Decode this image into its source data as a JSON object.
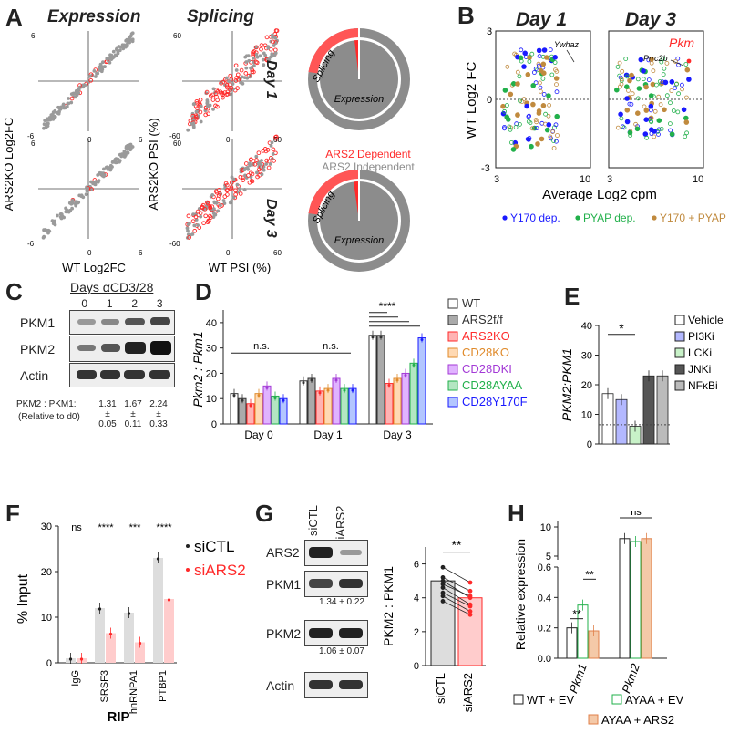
{
  "panelA": {
    "label": "A",
    "title_expr": "Expression",
    "title_splice": "Splicing",
    "ylabel_expr": "ARS2KO Log2FC",
    "ylabel_splice": "ARS2KO PSI (%)",
    "xlabel_expr": "WT Log2FC",
    "xlabel_splice": "WT PSI (%)",
    "expr_ticks": [
      "6",
      "-6",
      "0",
      "6"
    ],
    "splice_ticks": [
      "60",
      "-60",
      "0",
      "60"
    ],
    "day1": "Day 1",
    "day3": "Day 3",
    "donut_splicing": "Splicing",
    "donut_expression": "Expression",
    "legend_dep": "ARS2 Dependent",
    "legend_indep": "ARS2 Independent",
    "colors": {
      "dep": "#ff2a2a",
      "indep": "#8c8c8c"
    }
  },
  "panelB": {
    "label": "B",
    "day1": "Day 1",
    "day3": "Day 3",
    "ylabel": "WT Log2 FC",
    "xlabel": "Average  Log2 cpm",
    "yticks": [
      "3",
      "0",
      "-3"
    ],
    "xticks": [
      "3",
      "10"
    ],
    "ann_ywhaz": "Ywhaz",
    "ann_prrc2b": "Prrc2b",
    "ann_pkm": "Pkm",
    "legend": [
      "Y170 dep.",
      "PYAP dep.",
      "Y170 + PYAP"
    ],
    "colors": {
      "y170": "#1a1aff",
      "pyap": "#22b04b",
      "both": "#c08a3e"
    }
  },
  "panelC": {
    "label": "C",
    "header": "Days αCD3/28",
    "days": [
      "0",
      "1",
      "2",
      "3"
    ],
    "rows": [
      "PKM1",
      "PKM2",
      "Actin"
    ],
    "ratio_label": "PKM2 : PKM1:",
    "ratio_sub": "(Relative to d0)",
    "ratios": [
      {
        "v": "1.31",
        "pm": "±",
        "e": "0.05"
      },
      {
        "v": "1.67",
        "pm": "±",
        "e": "0.11"
      },
      {
        "v": "2.24",
        "pm": "±",
        "e": "0.33"
      }
    ]
  },
  "panelD": {
    "label": "D",
    "ylabel": "Pkm2 : Pkm1",
    "yticks": [
      "0",
      "10",
      "20",
      "30",
      "40"
    ],
    "groups": [
      "Day 0",
      "Day 1",
      "Day 3"
    ],
    "ns": "n.s.",
    "sig": "****",
    "legend": [
      "WT",
      "ARS2f/f",
      "ARS2KO",
      "CD28KO",
      "CD28DKI",
      "CD28AYAA",
      "CD28Y170F"
    ],
    "legend_colors": [
      "#333333",
      "#333333",
      "#ff2a2a",
      "#e08a2a",
      "#a33ad6",
      "#22b04b",
      "#1a1aff"
    ]
  },
  "panelE": {
    "label": "E",
    "ylabel": "PKM2:PKM1",
    "yticks": [
      "0",
      "10",
      "20",
      "30",
      "40"
    ],
    "sig": "*",
    "legend": [
      "Vehicle",
      "PI3Ki",
      "LCKi",
      "JNKi",
      "NFκBi"
    ]
  },
  "panelF": {
    "label": "F",
    "ylabel": "% Input",
    "yticks": [
      "0",
      "10",
      "20",
      "30"
    ],
    "categories": [
      "IgG",
      "SRSF3",
      "hnRNPA1",
      "PTBP1"
    ],
    "sigs": [
      "ns",
      "****",
      "***",
      "****"
    ],
    "xlabel": "RIP",
    "legend": [
      "siCTL",
      "siARS2"
    ]
  },
  "panelG": {
    "label": "G",
    "cols": [
      "siCTL",
      "siARS2"
    ],
    "rows": [
      "ARS2",
      "PKM1",
      "PKM2",
      "Actin"
    ],
    "q_pkm1": "1.34 ± 0.22",
    "q_pkm2": "1.06 ± 0.07",
    "ylabel": "PKM2 : PKM1",
    "yticks": [
      "0",
      "2",
      "4",
      "6"
    ],
    "sig": "**",
    "xcats": [
      "siCTL",
      "siARS2"
    ]
  },
  "panelH": {
    "label": "H",
    "ylabel": "Relative expression",
    "yticks": [
      "0.0",
      "0.2",
      "0.4",
      "0.6",
      "5",
      "10"
    ],
    "cats": [
      "Pkm1",
      "Pkm2"
    ],
    "sigs": [
      "**",
      "**",
      "ns"
    ],
    "legend": [
      "WT + EV",
      "AYAA + EV",
      "AYAA + ARS2"
    ]
  },
  "chart_data": [
    {
      "type": "bar",
      "title": "",
      "ylabel": "Pkm2 : Pkm1",
      "ylim": [
        0,
        45
      ],
      "categories": [
        "Day 0",
        "Day 1",
        "Day 3"
      ],
      "series": [
        {
          "name": "WT",
          "values": [
            12,
            17,
            35
          ]
        },
        {
          "name": "ARS2f/f",
          "values": [
            10,
            18,
            35
          ]
        },
        {
          "name": "ARS2KO",
          "values": [
            8,
            13,
            16
          ]
        },
        {
          "name": "CD28KO",
          "values": [
            12,
            14,
            18
          ]
        },
        {
          "name": "CD28DKI",
          "values": [
            15,
            18,
            20
          ]
        },
        {
          "name": "CD28AYAA",
          "values": [
            11,
            14,
            24
          ]
        },
        {
          "name": "CD28Y170F",
          "values": [
            10,
            14,
            34
          ]
        }
      ]
    },
    {
      "type": "bar",
      "ylabel": "PKM2:PKM1",
      "ylim": [
        0,
        40
      ],
      "categories": [
        "Vehicle",
        "PI3Ki",
        "LCKi",
        "JNKi",
        "NFκBi"
      ],
      "values": [
        17,
        15,
        6,
        23,
        23
      ]
    },
    {
      "type": "bar",
      "ylabel": "% Input",
      "xlabel": "RIP",
      "ylim": [
        0,
        30
      ],
      "categories": [
        "IgG",
        "SRSF3",
        "hnRNPA1",
        "PTBP1"
      ],
      "series": [
        {
          "name": "siCTL",
          "values": [
            1,
            12,
            11,
            23
          ]
        },
        {
          "name": "siARS2",
          "values": [
            1,
            6.5,
            4.5,
            14
          ]
        }
      ]
    },
    {
      "type": "bar",
      "ylabel": "PKM2 : PKM1",
      "ylim": [
        0,
        7
      ],
      "categories": [
        "siCTL",
        "siARS2"
      ],
      "values": [
        5.0,
        4.0
      ]
    },
    {
      "type": "bar",
      "ylabel": "Relative expression",
      "categories": [
        "Pkm1",
        "Pkm2"
      ],
      "series": [
        {
          "name": "WT + EV",
          "values": [
            0.2,
            8
          ]
        },
        {
          "name": "AYAA + EV",
          "values": [
            0.35,
            7.5
          ]
        },
        {
          "name": "AYAA + ARS2",
          "values": [
            0.18,
            8
          ]
        }
      ]
    }
  ]
}
